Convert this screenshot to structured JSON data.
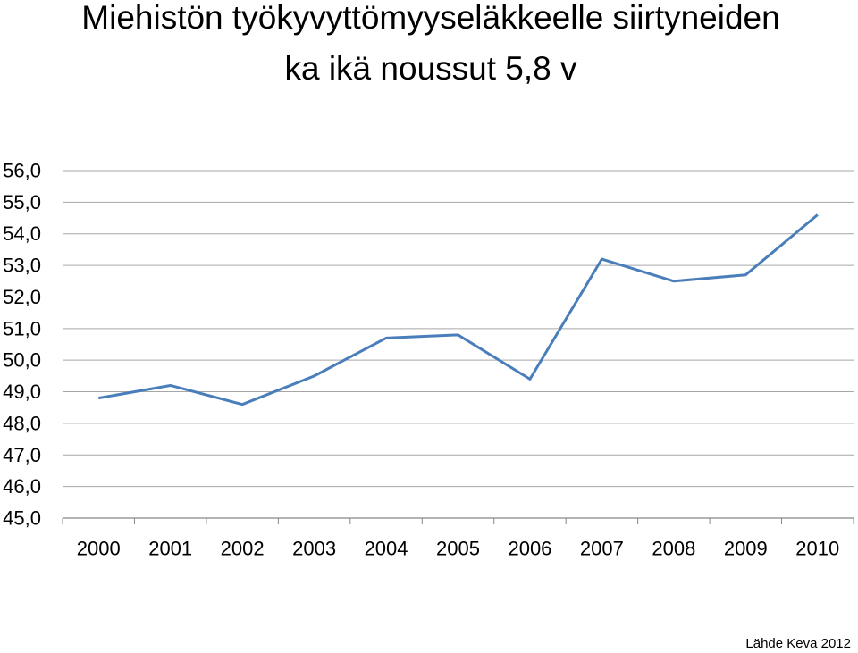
{
  "chart_data": {
    "type": "line",
    "title": [
      "Miehistön työkyvyttömyyseläkkeelle siirtyneiden",
      "ka ikä noussut 5,8 v"
    ],
    "categories": [
      "2000",
      "2001",
      "2002",
      "2003",
      "2004",
      "2005",
      "2006",
      "2007",
      "2008",
      "2009",
      "2010"
    ],
    "series": [
      {
        "color": "#4a7ebb",
        "values": [
          48.8,
          49.2,
          48.6,
          49.5,
          50.7,
          50.8,
          49.4,
          53.2,
          52.5,
          52.7,
          54.6
        ]
      }
    ],
    "ylim": [
      45,
      56
    ],
    "yticks": [
      {
        "value": 45,
        "label": "45,0"
      },
      {
        "value": 46,
        "label": "46,0"
      },
      {
        "value": 47,
        "label": "47,0"
      },
      {
        "value": 48,
        "label": "48,0"
      },
      {
        "value": 49,
        "label": "49,0"
      },
      {
        "value": 50,
        "label": "50,0"
      },
      {
        "value": 51,
        "label": "51,0"
      },
      {
        "value": 52,
        "label": "52,0"
      },
      {
        "value": 53,
        "label": "53,0"
      },
      {
        "value": 54,
        "label": "54,0"
      },
      {
        "value": 55,
        "label": "55,0"
      },
      {
        "value": 56,
        "label": "56,0"
      }
    ],
    "grid": true,
    "source": "Lähde Keva 2012"
  }
}
